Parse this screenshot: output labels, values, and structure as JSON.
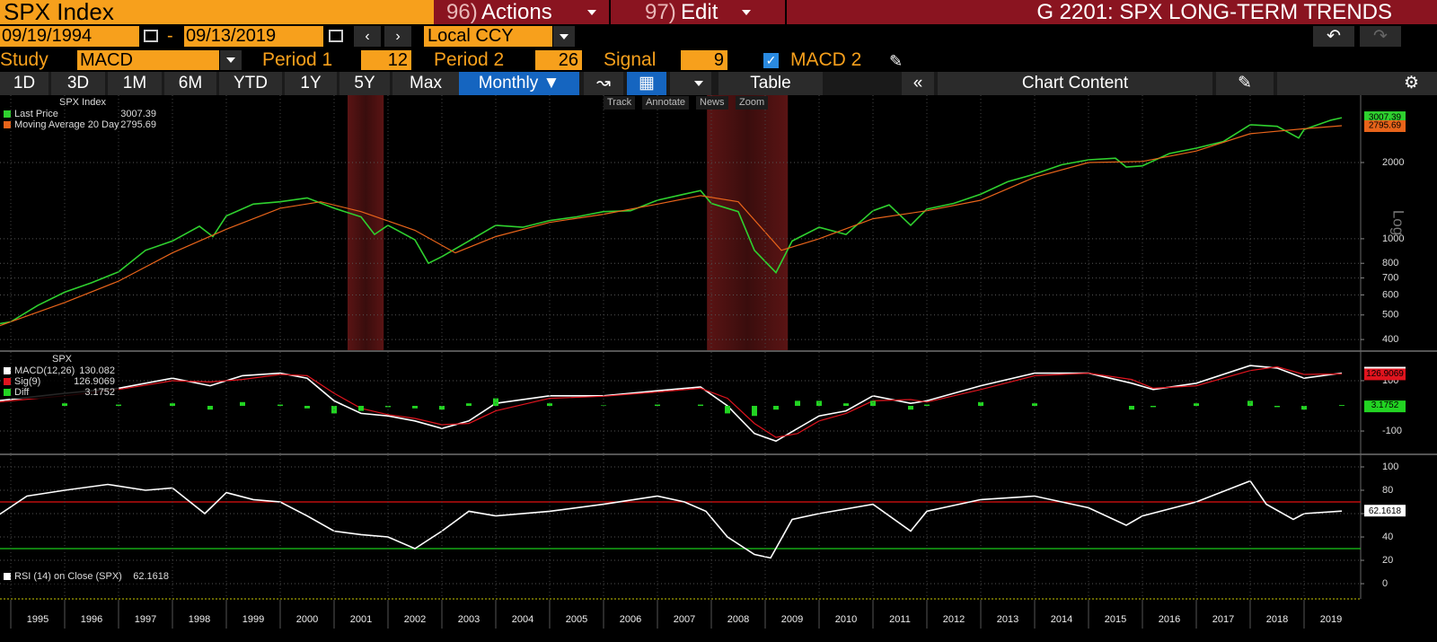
{
  "header": {
    "security": "SPX Index",
    "actions_num": "96)",
    "actions": "Actions",
    "edit_num": "97)",
    "edit": "Edit",
    "title": "G 2201: SPX LONG-TERM TRENDS"
  },
  "controls": {
    "start_date": "09/19/1994",
    "date_sep": "-",
    "end_date": "09/13/2019",
    "currency": "Local CCY",
    "study_label": "Study",
    "study": "MACD",
    "period1_label": "Period 1",
    "period1": 12,
    "period2_label": "Period 2",
    "period2": 26,
    "signal_label": "Signal",
    "signal": 9,
    "macd2": "MACD 2"
  },
  "toolbar": {
    "ranges": [
      "1D",
      "3D",
      "1M",
      "6M",
      "YTD",
      "1Y",
      "5Y",
      "Max"
    ],
    "frequency": "Monthly",
    "table": "Table",
    "chart_content": "Chart Content",
    "tools": [
      "Track",
      "Annotate",
      "News",
      "Zoom"
    ]
  },
  "chart_data": [
    {
      "type": "line",
      "title": "SPX Index",
      "log_scale": true,
      "axis_label": "Log",
      "grid": true,
      "xlim": [
        1994.8,
        2020.05
      ],
      "ylim": [
        363,
        3690
      ],
      "yticks": [
        400,
        500,
        600,
        700,
        800,
        1000,
        2000
      ],
      "recessions": [
        [
          2001.25,
          2001.92
        ],
        [
          2007.92,
          2009.42
        ]
      ],
      "series": [
        {
          "name": "Last Price",
          "color": "#2fd12f",
          "x": [
            1994.75,
            1995,
            1995.5,
            1996,
            1996.5,
            1997,
            1997.5,
            1998,
            1998.5,
            1998.75,
            1999,
            1999.5,
            2000,
            2000.5,
            2001,
            2001.5,
            2001.75,
            2002,
            2002.5,
            2002.75,
            2003,
            2003.5,
            2004,
            2004.5,
            2005,
            2005.5,
            2006,
            2006.5,
            2007,
            2007.5,
            2007.8,
            2008,
            2008.5,
            2008.8,
            2009.2,
            2009.5,
            2010,
            2010.5,
            2011,
            2011.3,
            2011.7,
            2012,
            2012.5,
            2013,
            2013.5,
            2014,
            2014.5,
            2015,
            2015.5,
            2015.7,
            2016,
            2016.5,
            2017,
            2017.5,
            2018,
            2018.5,
            2018.9,
            2019,
            2019.5,
            2019.7
          ],
          "values": [
            460,
            470,
            545,
            615,
            670,
            740,
            900,
            980,
            1120,
            1020,
            1230,
            1370,
            1400,
            1450,
            1320,
            1220,
            1040,
            1130,
            990,
            800,
            850,
            980,
            1130,
            1110,
            1180,
            1220,
            1280,
            1290,
            1420,
            1500,
            1550,
            1380,
            1280,
            900,
            735,
            980,
            1110,
            1040,
            1290,
            1360,
            1130,
            1310,
            1380,
            1500,
            1680,
            1800,
            1960,
            2050,
            2080,
            1920,
            1940,
            2170,
            2280,
            2420,
            2820,
            2780,
            2500,
            2700,
            2940,
            3007.39
          ]
        },
        {
          "name": "Moving Average 20 Day",
          "color": "#e8641a",
          "x": [
            1994.75,
            1996,
            1997,
            1998,
            1999,
            2000,
            2000.75,
            2001.5,
            2002.5,
            2003.25,
            2004,
            2005,
            2006,
            2007,
            2007.8,
            2008.5,
            2009.3,
            2010,
            2011,
            2012,
            2013,
            2014,
            2015,
            2016,
            2017,
            2018,
            2019,
            2019.7
          ],
          "values": [
            450,
            560,
            680,
            880,
            1090,
            1320,
            1400,
            1280,
            1080,
            880,
            1020,
            1160,
            1250,
            1370,
            1480,
            1400,
            900,
            1000,
            1200,
            1290,
            1420,
            1750,
            2000,
            2020,
            2220,
            2600,
            2720,
            2795.69
          ]
        }
      ]
    },
    {
      "type": "line",
      "title": "SPX",
      "grid": true,
      "xlim": [
        1994.8,
        2020.05
      ],
      "ylim": [
        -189,
        214
      ],
      "yticks": [
        -100,
        100
      ],
      "series": [
        {
          "name": "MACD(12,26)",
          "color": "#ffffff",
          "x": [
            1994.75,
            1996,
            1997,
            1998,
            1998.7,
            1999.3,
            2000,
            2000.5,
            2001,
            2001.5,
            2002,
            2002.5,
            2003,
            2003.5,
            2004,
            2005,
            2006,
            2007,
            2007.8,
            2008.3,
            2008.8,
            2009.2,
            2009.6,
            2010,
            2010.5,
            2011,
            2011.7,
            2012,
            2013,
            2014,
            2015,
            2015.8,
            2016.2,
            2017,
            2018,
            2018.5,
            2019,
            2019.7
          ],
          "values": [
            20,
            50,
            70,
            110,
            80,
            120,
            130,
            110,
            20,
            -30,
            -40,
            -60,
            -90,
            -60,
            10,
            40,
            40,
            60,
            75,
            0,
            -110,
            -140,
            -90,
            -40,
            -20,
            40,
            10,
            20,
            80,
            130,
            130,
            90,
            65,
            90,
            160,
            150,
            110,
            130.082
          ]
        },
        {
          "name": "Sig(9)",
          "color": "#e0141e",
          "x": [
            1994.75,
            1996,
            1997,
            1998,
            1998.7,
            1999.3,
            2000,
            2000.5,
            2001,
            2001.5,
            2002,
            2002.5,
            2003,
            2003.5,
            2004,
            2005,
            2006,
            2007,
            2007.8,
            2008.3,
            2008.8,
            2009.2,
            2009.6,
            2010,
            2010.5,
            2011,
            2011.7,
            2012,
            2013,
            2014,
            2015,
            2015.8,
            2016.2,
            2017,
            2018,
            2018.5,
            2019,
            2019.7
          ],
          "values": [
            15,
            40,
            65,
            100,
            95,
            105,
            125,
            120,
            50,
            -10,
            -35,
            -50,
            -75,
            -70,
            -20,
            30,
            38,
            55,
            70,
            30,
            -70,
            -125,
            -110,
            -60,
            -30,
            20,
            25,
            15,
            65,
            120,
            130,
            105,
            70,
            80,
            140,
            155,
            125,
            126.9069
          ]
        },
        {
          "name": "Diff",
          "type": "bar",
          "color": "#22d422",
          "x": [
            1994.75,
            1996,
            1997,
            1998,
            1998.7,
            1999.3,
            2000,
            2000.5,
            2001,
            2001.5,
            2002,
            2002.5,
            2003,
            2003.5,
            2004,
            2005,
            2006,
            2007,
            2007.8,
            2008.3,
            2008.8,
            2009.2,
            2009.6,
            2010,
            2010.5,
            2011,
            2011.7,
            2012,
            2013,
            2014,
            2015,
            2015.8,
            2016.2,
            2017,
            2018,
            2018.5,
            2019,
            2019.7
          ],
          "values": [
            5,
            10,
            5,
            10,
            -15,
            15,
            5,
            -10,
            -30,
            -20,
            -5,
            -10,
            -15,
            10,
            30,
            10,
            2,
            5,
            5,
            -30,
            -40,
            -15,
            20,
            20,
            10,
            20,
            -15,
            5,
            15,
            10,
            0,
            -15,
            -5,
            10,
            20,
            -5,
            -15,
            3.1752
          ]
        }
      ]
    },
    {
      "type": "line",
      "grid": true,
      "xlim": [
        1994.8,
        2020.05
      ],
      "ylim": [
        -11.5,
        110
      ],
      "yticks": [
        0,
        20,
        40,
        60,
        80,
        100
      ],
      "levels": [
        {
          "value": 70,
          "color": "#e01010"
        },
        {
          "value": 30,
          "color": "#19c919"
        }
      ],
      "xticks": [
        1995,
        1996,
        1997,
        1998,
        1999,
        2000,
        2001,
        2002,
        2003,
        2004,
        2005,
        2006,
        2007,
        2008,
        2009,
        2010,
        2011,
        2012,
        2013,
        2014,
        2015,
        2016,
        2017,
        2018,
        2019
      ],
      "series": [
        {
          "name": "RSI (14)",
          "suffix": "on Close (SPX)",
          "color": "#ffffff",
          "x": [
            1994.75,
            1995.3,
            1996,
            1996.8,
            1997.5,
            1998,
            1998.6,
            1999,
            1999.5,
            2000,
            2000.5,
            2001,
            2001.5,
            2002,
            2002.5,
            2003,
            2003.5,
            2004,
            2005,
            2006,
            2007,
            2007.5,
            2007.9,
            2008.3,
            2008.8,
            2009.1,
            2009.5,
            2010,
            2011,
            2011.7,
            2012,
            2013,
            2014,
            2015,
            2015.7,
            2016,
            2017,
            2018,
            2018.3,
            2018.8,
            2019,
            2019.7
          ],
          "values": [
            58,
            75,
            80,
            85,
            80,
            82,
            60,
            78,
            72,
            70,
            58,
            45,
            42,
            40,
            30,
            45,
            62,
            58,
            62,
            68,
            75,
            70,
            62,
            40,
            25,
            22,
            55,
            60,
            68,
            45,
            62,
            72,
            75,
            65,
            50,
            58,
            70,
            88,
            68,
            55,
            60,
            62.1618
          ]
        }
      ]
    }
  ]
}
